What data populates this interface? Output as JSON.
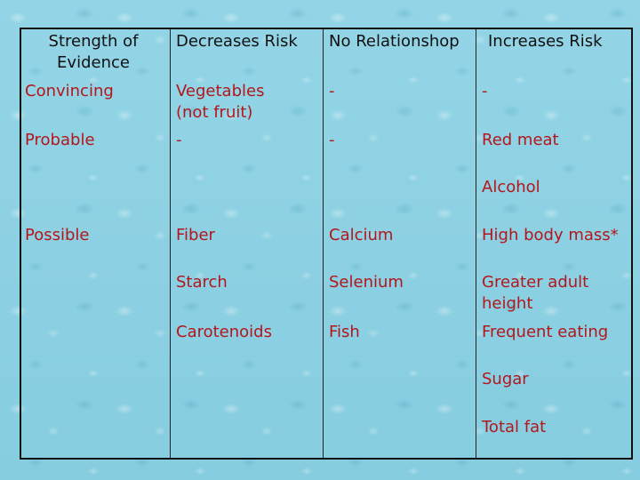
{
  "table": {
    "headers": {
      "strength_line1": "Strength of",
      "strength_line2": "Evidence",
      "decreases": "Decreases Risk",
      "no_relationship": "No Relationshop",
      "increases": "Increases Risk"
    },
    "rows": {
      "convincing": {
        "label": "Convincing",
        "decreases_line1": "Vegetables",
        "decreases_line2": "(not fruit)",
        "none": "-",
        "increases": "-"
      },
      "probable": {
        "label": "Probable",
        "decreases": "-",
        "none": "-",
        "increases_1": "Red meat",
        "increases_2": "Alcohol"
      },
      "possible": {
        "label": "Possible",
        "decreases": [
          "Fiber",
          "Starch",
          "Carotenoids"
        ],
        "none": [
          "Calcium",
          "Selenium",
          "Fish"
        ],
        "increases_1": "High body mass*",
        "increases_2_line1": "Greater adult",
        "increases_2_line2": "height",
        "increases_3": "Frequent eating",
        "increases_4": "Sugar",
        "increases_5": "Total fat"
      }
    }
  },
  "colors": {
    "background": "#8fd2e4",
    "body_text": "#b3161b",
    "header_text": "#111111",
    "grid": "#222222"
  }
}
